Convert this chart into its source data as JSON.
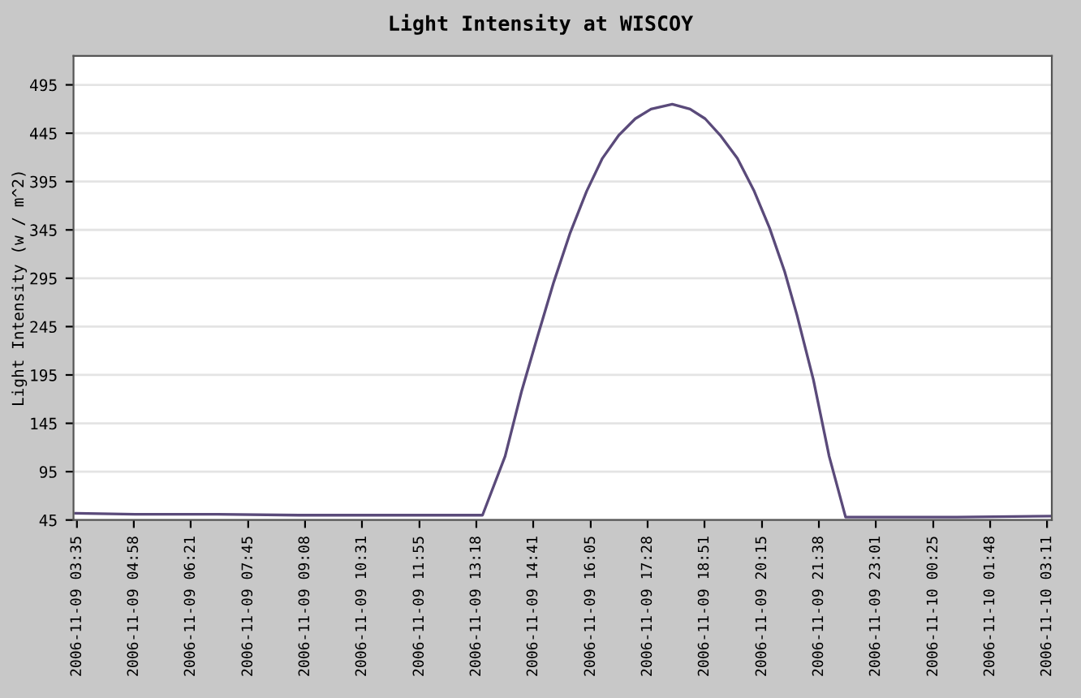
{
  "chart_data": {
    "type": "line",
    "title": "Light Intensity at WISCOY",
    "ylabel": "Light Intensity (w / m^2)",
    "series": [
      {
        "color": "#5a4a7a",
        "x": [
          "2006-11-09T03:33",
          "2006-11-09T05:00",
          "2006-11-09T07:00",
          "2006-11-09T09:00",
          "2006-11-09T11:00",
          "2006-11-09T13:00",
          "2006-11-09T13:27",
          "2006-11-09T14:00",
          "2006-11-09T14:24",
          "2006-11-09T14:47",
          "2006-11-09T15:11",
          "2006-11-09T15:35",
          "2006-11-09T15:59",
          "2006-11-09T16:22",
          "2006-11-09T16:46",
          "2006-11-09T17:10",
          "2006-11-09T17:33",
          "2006-11-09T18:04",
          "2006-11-09T18:30",
          "2006-11-09T18:52",
          "2006-11-09T19:15",
          "2006-11-09T19:39",
          "2006-11-09T20:03",
          "2006-11-09T20:26",
          "2006-11-09T20:48",
          "2006-11-09T21:06",
          "2006-11-09T21:30",
          "2006-11-09T21:53",
          "2006-11-09T22:17",
          "2006-11-09T23:00",
          "2006-11-10T01:00",
          "2006-11-10T03:18"
        ],
        "values": [
          52,
          51,
          51,
          50,
          50,
          50,
          50,
          111,
          178,
          234,
          291,
          342,
          385,
          419,
          443,
          460,
          470,
          475,
          470,
          460,
          442,
          419,
          386,
          347,
          302,
          257,
          190,
          111,
          48,
          48,
          48,
          49
        ]
      }
    ],
    "xlim": [
      "2006-11-09T03:30",
      "2006-11-10T03:18"
    ],
    "ylim": [
      45,
      525
    ],
    "xticks": [
      {
        "value": "2006-11-09T03:35",
        "label": "2006-11-09 03:35"
      },
      {
        "value": "2006-11-09T04:58",
        "label": "2006-11-09 04:58"
      },
      {
        "value": "2006-11-09T06:21",
        "label": "2006-11-09 06:21"
      },
      {
        "value": "2006-11-09T07:45",
        "label": "2006-11-09 07:45"
      },
      {
        "value": "2006-11-09T09:08",
        "label": "2006-11-09 09:08"
      },
      {
        "value": "2006-11-09T10:31",
        "label": "2006-11-09 10:31"
      },
      {
        "value": "2006-11-09T11:55",
        "label": "2006-11-09 11:55"
      },
      {
        "value": "2006-11-09T13:18",
        "label": "2006-11-09 13:18"
      },
      {
        "value": "2006-11-09T14:41",
        "label": "2006-11-09 14:41"
      },
      {
        "value": "2006-11-09T16:05",
        "label": "2006-11-09 16:05"
      },
      {
        "value": "2006-11-09T17:28",
        "label": "2006-11-09 17:28"
      },
      {
        "value": "2006-11-09T18:51",
        "label": "2006-11-09 18:51"
      },
      {
        "value": "2006-11-09T20:15",
        "label": "2006-11-09 20:15"
      },
      {
        "value": "2006-11-09T21:38",
        "label": "2006-11-09 21:38"
      },
      {
        "value": "2006-11-09T23:01",
        "label": "2006-11-09 23:01"
      },
      {
        "value": "2006-11-10T00:25",
        "label": "2006-11-10 00:25"
      },
      {
        "value": "2006-11-10T01:48",
        "label": "2006-11-10 01:48"
      },
      {
        "value": "2006-11-10T03:11",
        "label": "2006-11-10 03:11"
      }
    ],
    "yticks": [
      45,
      95,
      145,
      195,
      245,
      295,
      345,
      395,
      445,
      495
    ],
    "grid": "y",
    "marker": "none",
    "line_style": "solid"
  }
}
